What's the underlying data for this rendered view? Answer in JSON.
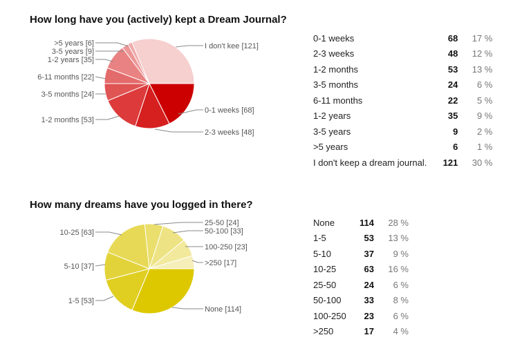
{
  "chart_data": [
    {
      "type": "pie",
      "title": "How long have you (actively) kept a Dream Journal?",
      "colors": [
        "#cc0000",
        "#d61f1f",
        "#dd3b3b",
        "#e05454",
        "#e46b6b",
        "#e98282",
        "#ec9797",
        "#f0abab",
        "#f6cfcf"
      ],
      "slices": [
        {
          "label": "0-1 weeks",
          "chart_label": "0-1 weeks [68]",
          "count": 68,
          "percent": "17 %"
        },
        {
          "label": "2-3 weeks",
          "chart_label": "2-3 weeks [48]",
          "count": 48,
          "percent": "12 %"
        },
        {
          "label": "1-2 months",
          "chart_label": "1-2 months [53]",
          "count": 53,
          "percent": "13 %"
        },
        {
          "label": "3-5 months",
          "chart_label": "3-5 months [24]",
          "count": 24,
          "percent": "6 %"
        },
        {
          "label": "6-11 months",
          "chart_label": "6-11 months [22]",
          "count": 22,
          "percent": "5 %"
        },
        {
          "label": "1-2 years",
          "chart_label": "1-2 years [35]",
          "count": 35,
          "percent": "9 %"
        },
        {
          "label": "3-5 years",
          "chart_label": "3-5 years [9]",
          "count": 9,
          "percent": "2 %"
        },
        {
          "label": ">5 years",
          "chart_label": ">5 years [6]",
          "count": 6,
          "percent": "1 %"
        },
        {
          "label": "I don't keep a dream journal.",
          "chart_label": "I don't kee [121]",
          "count": 121,
          "percent": "30 %"
        }
      ]
    },
    {
      "type": "pie",
      "title": "How many dreams have you logged in there?",
      "colors": [
        "#ddc800",
        "#e0ce21",
        "#e3d33b",
        "#e7d955",
        "#eade6c",
        "#eee384",
        "#f2e99c",
        "#f6efba"
      ],
      "slices": [
        {
          "label": "None",
          "chart_label": "None [114]",
          "count": 114,
          "percent": "28 %"
        },
        {
          "label": "1-5",
          "chart_label": "1-5 [53]",
          "count": 53,
          "percent": "13 %"
        },
        {
          "label": "5-10",
          "chart_label": "5-10 [37]",
          "count": 37,
          "percent": "9 %"
        },
        {
          "label": "10-25",
          "chart_label": "10-25 [63]",
          "count": 63,
          "percent": "16 %"
        },
        {
          "label": "25-50",
          "chart_label": "25-50 [24]",
          "count": 24,
          "percent": "6 %"
        },
        {
          "label": "50-100",
          "chart_label": "50-100 [33]",
          "count": 33,
          "percent": "8 %"
        },
        {
          "label": "100-250",
          "chart_label": "100-250 [23]",
          "count": 23,
          "percent": "6 %"
        },
        {
          "label": ">250",
          "chart_label": ">250 [17]",
          "count": 17,
          "percent": "4 %"
        }
      ]
    }
  ]
}
